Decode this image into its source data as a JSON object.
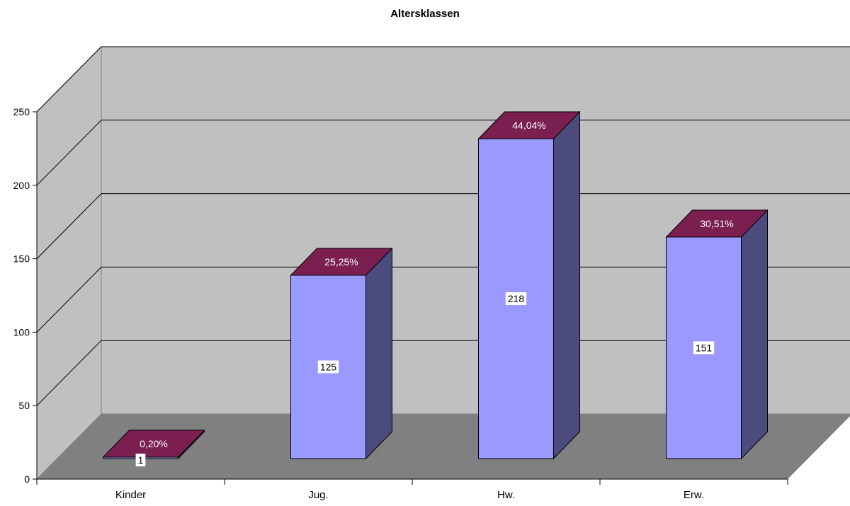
{
  "chart_data": {
    "type": "bar",
    "title": "Altersklassen",
    "categories": [
      "Kinder",
      "Jug.",
      "Hw.",
      "Erw."
    ],
    "values": [
      1,
      125,
      218,
      151
    ],
    "value_labels": [
      "1",
      "125",
      "218",
      "151"
    ],
    "percent_labels": [
      "0,20%",
      "25,25%",
      "44,04%",
      "30,51%"
    ],
    "y_ticks": [
      "0",
      "50",
      "100",
      "150",
      "200",
      "250"
    ],
    "ylim": [
      0,
      250
    ],
    "xlabel": "",
    "ylabel": "",
    "grid": true,
    "legend": false,
    "style": "3d-column"
  },
  "colors": {
    "back_wall": "#c0c0c0",
    "floor": "#808080",
    "bar_front": "#9999ff",
    "bar_side": "#4b4b7d",
    "bar_top": "#7a1f4f",
    "value_label_bg": "#ffffff"
  }
}
